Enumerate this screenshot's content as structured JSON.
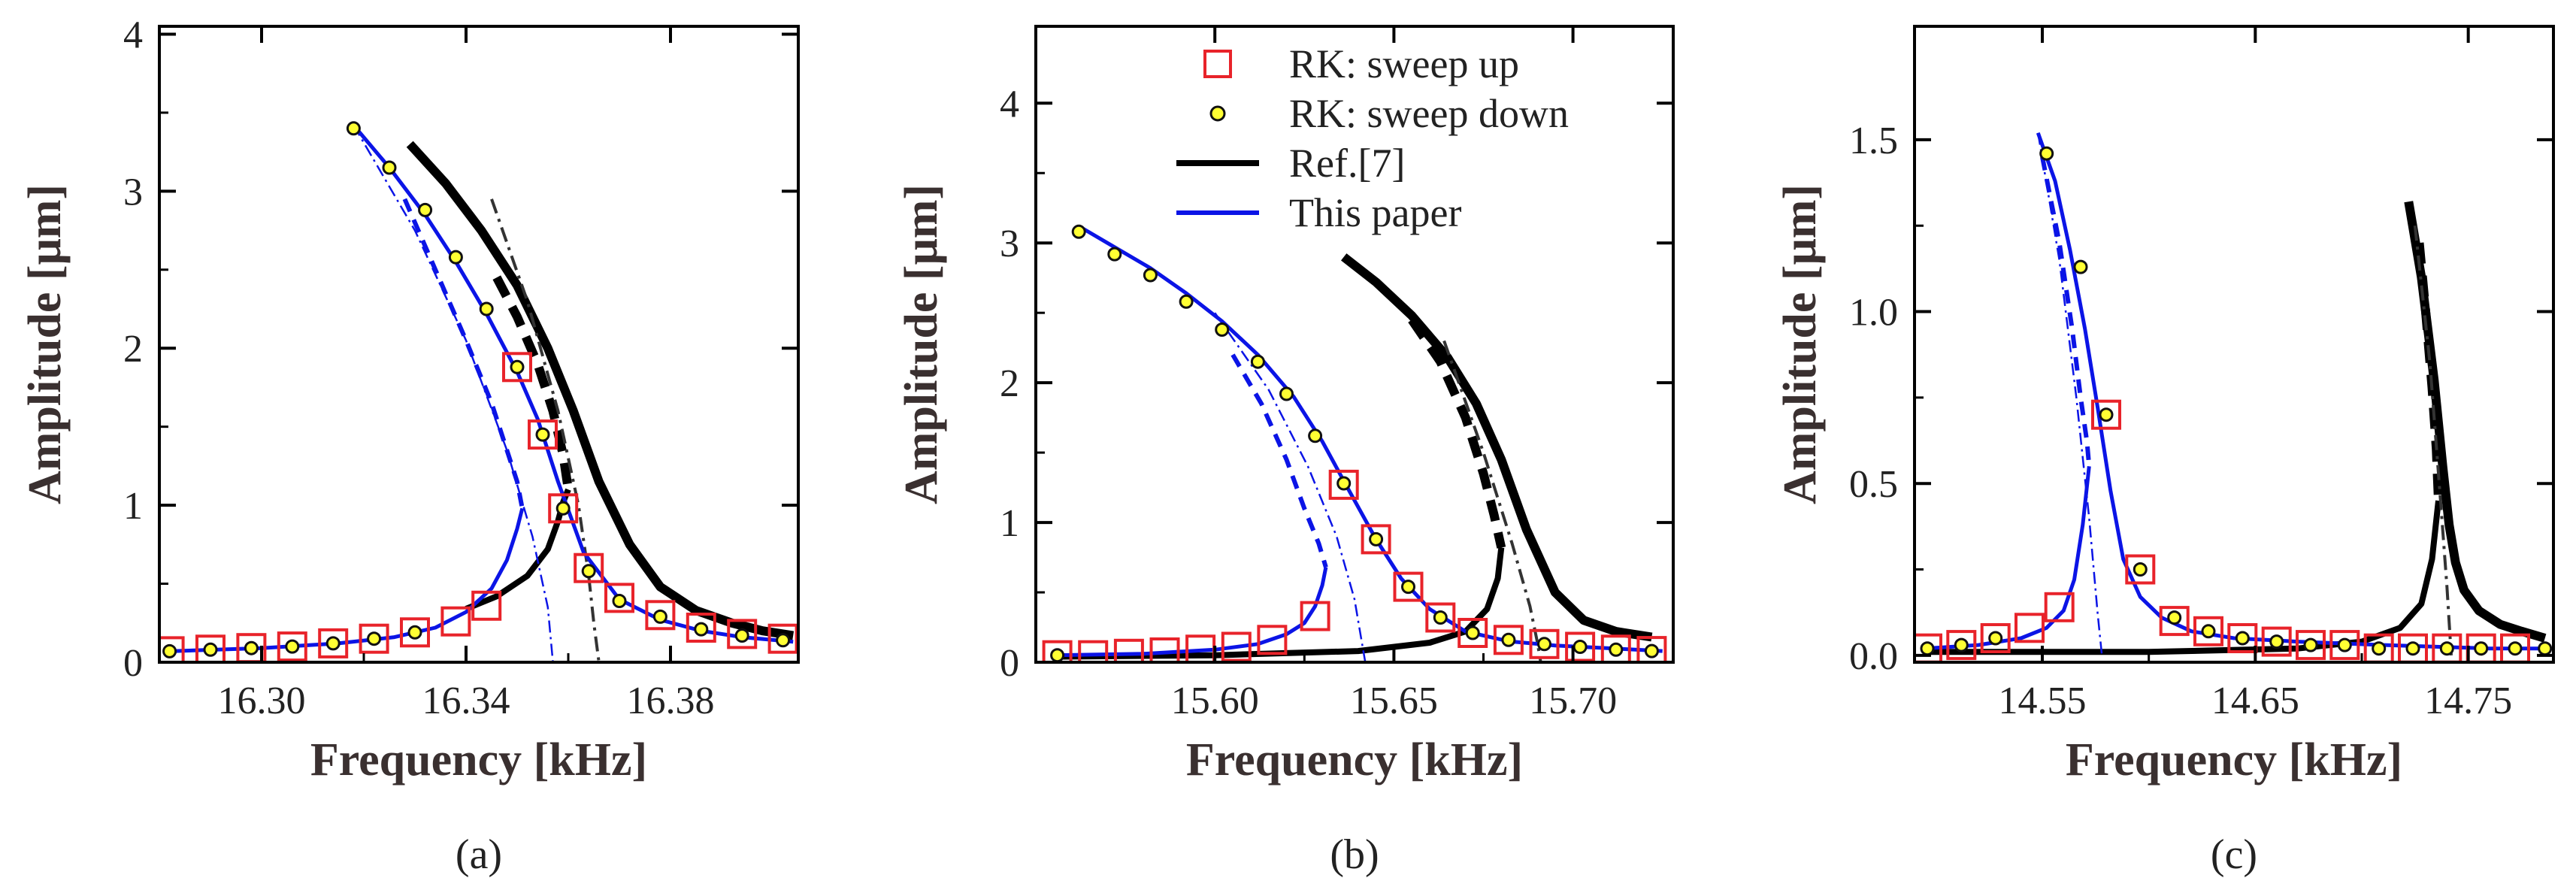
{
  "colors": {
    "rk_square": "#e8232a",
    "rk_circle_fill": "#ffff33",
    "reference": "#000000",
    "this_paper": "#0b14e6",
    "axis": "#000000"
  },
  "legend": {
    "entries": [
      {
        "label": "RK: sweep up",
        "marker": "square"
      },
      {
        "label": "RK: sweep down",
        "marker": "circle"
      },
      {
        "label": "Ref.[7]",
        "marker": "line-black"
      },
      {
        "label": "This paper",
        "marker": "line-blue"
      }
    ]
  },
  "chart_data": [
    {
      "type": "line",
      "panel_label": "(a)",
      "xlabel": "Frequency [kHz]",
      "ylabel": "Amplitude [μm]",
      "xlim": [
        16.28,
        16.405
      ],
      "ylim": [
        0,
        4.05
      ],
      "xticks": [
        16.3,
        16.34,
        16.38
      ],
      "xtick_labels": [
        "16.30",
        "16.34",
        "16.38"
      ],
      "yticks": [
        0,
        1,
        2,
        3,
        4
      ],
      "ytick_labels": [
        "0",
        "1",
        "2",
        "3",
        "4"
      ],
      "series": [
        {
          "name": "Ref.[7] stable branch",
          "color": "black",
          "width": 12,
          "dash": "",
          "x": [
            16.329,
            16.336,
            16.343,
            16.35,
            16.356,
            16.361,
            16.366,
            16.372,
            16.378,
            16.385,
            16.392,
            16.398,
            16.404
          ],
          "y": [
            3.3,
            3.05,
            2.75,
            2.4,
            2.0,
            1.6,
            1.15,
            0.75,
            0.48,
            0.33,
            0.25,
            0.2,
            0.17
          ]
        },
        {
          "name": "Ref.[7] lower branch",
          "color": "black",
          "width": 8,
          "dash": "",
          "x": [
            16.34,
            16.346,
            16.352,
            16.356,
            16.358,
            16.359,
            16.36
          ],
          "y": [
            0.34,
            0.42,
            0.55,
            0.72,
            0.9,
            1.02,
            1.1
          ]
        },
        {
          "name": "Ref.[7] unstable",
          "color": "black",
          "width": 12,
          "dash": "28,16",
          "x": [
            16.346,
            16.35,
            16.354,
            16.357,
            16.359,
            16.36
          ],
          "y": [
            2.45,
            2.2,
            1.9,
            1.6,
            1.32,
            1.1
          ]
        },
        {
          "name": "Ref.[7] backbone",
          "color": "#333333",
          "width": 4,
          "dash": "20,8,4,8",
          "x": [
            16.345,
            16.352,
            16.358,
            16.362,
            16.364,
            16.365,
            16.366
          ],
          "y": [
            2.95,
            2.3,
            1.6,
            1.0,
            0.55,
            0.25,
            0.0
          ]
        },
        {
          "name": "This paper stable",
          "color": "blue",
          "width": 5,
          "dash": "",
          "x": [
            16.318,
            16.325,
            16.332,
            16.338,
            16.344,
            16.35,
            16.354,
            16.358,
            16.363,
            16.37,
            16.378,
            16.386,
            16.394,
            16.404
          ],
          "y": [
            3.42,
            3.15,
            2.85,
            2.55,
            2.22,
            1.85,
            1.55,
            1.15,
            0.7,
            0.4,
            0.27,
            0.2,
            0.16,
            0.13
          ]
        },
        {
          "name": "This paper lower",
          "color": "blue",
          "width": 5,
          "dash": "",
          "x": [
            16.282,
            16.3,
            16.315,
            16.326,
            16.334,
            16.34,
            16.345,
            16.348,
            16.35,
            16.351
          ],
          "y": [
            0.07,
            0.09,
            0.12,
            0.16,
            0.22,
            0.32,
            0.47,
            0.65,
            0.85,
            0.98
          ]
        },
        {
          "name": "This paper unstable",
          "color": "blue",
          "width": 6,
          "dash": "18,12",
          "x": [
            16.328,
            16.334,
            16.34,
            16.345,
            16.348,
            16.35,
            16.351
          ],
          "y": [
            2.95,
            2.5,
            2.05,
            1.65,
            1.35,
            1.15,
            0.98
          ]
        },
        {
          "name": "This paper backbone",
          "color": "blue",
          "width": 2.5,
          "dash": "16,6,3,6",
          "x": [
            16.318,
            16.33,
            16.34,
            16.348,
            16.353,
            16.356,
            16.357
          ],
          "y": [
            3.42,
            2.75,
            2.05,
            1.35,
            0.8,
            0.35,
            0.0
          ]
        }
      ],
      "rk_up": {
        "x": [
          16.282,
          16.29,
          16.298,
          16.306,
          16.314,
          16.322,
          16.33,
          16.338,
          16.344,
          16.35,
          16.355,
          16.359,
          16.364,
          16.37,
          16.378,
          16.386,
          16.394,
          16.402
        ],
        "y": [
          0.07,
          0.08,
          0.09,
          0.1,
          0.12,
          0.15,
          0.19,
          0.26,
          0.36,
          1.88,
          1.45,
          0.98,
          0.6,
          0.41,
          0.3,
          0.22,
          0.18,
          0.15
        ]
      },
      "rk_down": {
        "x": [
          16.318,
          16.325,
          16.332,
          16.338,
          16.344,
          16.35,
          16.355,
          16.359,
          16.364,
          16.37,
          16.378,
          16.386,
          16.394,
          16.402,
          16.33,
          16.322,
          16.314,
          16.306,
          16.298,
          16.29,
          16.282
        ],
        "y": [
          3.4,
          3.15,
          2.88,
          2.58,
          2.25,
          1.88,
          1.45,
          0.98,
          0.58,
          0.39,
          0.29,
          0.21,
          0.17,
          0.14,
          0.19,
          0.15,
          0.12,
          0.1,
          0.09,
          0.08,
          0.07
        ]
      }
    },
    {
      "type": "line",
      "panel_label": "(b)",
      "xlabel": "Frequency [kHz]",
      "ylabel": "Amplitude [μm]",
      "xlim": [
        15.55,
        15.728
      ],
      "ylim": [
        0,
        4.55
      ],
      "xticks": [
        15.6,
        15.65,
        15.7
      ],
      "xtick_labels": [
        "15.60",
        "15.65",
        "15.70"
      ],
      "yticks": [
        0,
        1,
        2,
        3,
        4
      ],
      "ytick_labels": [
        "0",
        "1",
        "2",
        "3",
        "4"
      ],
      "series": [
        {
          "name": "Ref.[7] stable branch",
          "color": "black",
          "width": 12,
          "dash": "",
          "x": [
            15.636,
            15.645,
            15.655,
            15.665,
            15.673,
            15.68,
            15.687,
            15.695,
            15.703,
            15.712,
            15.722
          ],
          "y": [
            2.9,
            2.72,
            2.48,
            2.18,
            1.85,
            1.45,
            0.95,
            0.5,
            0.3,
            0.22,
            0.18
          ]
        },
        {
          "name": "Ref.[7] lower branch",
          "color": "black",
          "width": 8,
          "dash": "",
          "x": [
            15.555,
            15.6,
            15.64,
            15.66,
            15.67,
            15.676,
            15.679,
            15.68
          ],
          "y": [
            0.04,
            0.05,
            0.08,
            0.14,
            0.22,
            0.38,
            0.6,
            0.82
          ]
        },
        {
          "name": "Ref.[7] unstable",
          "color": "black",
          "width": 12,
          "dash": "28,16",
          "x": [
            15.655,
            15.663,
            15.67,
            15.675,
            15.678,
            15.68
          ],
          "y": [
            2.45,
            2.15,
            1.75,
            1.35,
            1.05,
            0.82
          ]
        },
        {
          "name": "Ref.[7] backbone",
          "color": "#333333",
          "width": 4,
          "dash": "20,8,4,8",
          "x": [
            15.664,
            15.675,
            15.683,
            15.688,
            15.69,
            15.691
          ],
          "y": [
            2.3,
            1.5,
            0.85,
            0.4,
            0.15,
            0.0
          ]
        },
        {
          "name": "This paper stable",
          "color": "blue",
          "width": 5,
          "dash": "",
          "x": [
            15.562,
            15.572,
            15.582,
            15.592,
            15.602,
            15.612,
            15.622,
            15.63,
            15.637,
            15.645,
            15.652,
            15.66,
            15.67,
            15.682,
            15.695,
            15.71,
            15.725
          ],
          "y": [
            3.12,
            2.97,
            2.82,
            2.64,
            2.44,
            2.2,
            1.9,
            1.58,
            1.25,
            0.88,
            0.6,
            0.38,
            0.22,
            0.15,
            0.12,
            0.1,
            0.08
          ]
        },
        {
          "name": "This paper lower",
          "color": "blue",
          "width": 5,
          "dash": "",
          "x": [
            15.555,
            15.58,
            15.6,
            15.612,
            15.62,
            15.625,
            15.628,
            15.63,
            15.631
          ],
          "y": [
            0.05,
            0.06,
            0.09,
            0.13,
            0.2,
            0.28,
            0.4,
            0.55,
            0.68
          ]
        },
        {
          "name": "This paper unstable",
          "color": "blue",
          "width": 6,
          "dash": "18,12",
          "x": [
            15.605,
            15.613,
            15.62,
            15.625,
            15.629,
            15.631
          ],
          "y": [
            2.2,
            1.85,
            1.45,
            1.1,
            0.85,
            0.68
          ]
        },
        {
          "name": "This paper backbone",
          "color": "blue",
          "width": 2.5,
          "dash": "16,6,3,6",
          "x": [
            15.6,
            15.615,
            15.626,
            15.634,
            15.639,
            15.641,
            15.642
          ],
          "y": [
            2.5,
            1.95,
            1.4,
            0.9,
            0.45,
            0.15,
            0.0
          ]
        }
      ],
      "rk_up": {
        "x": [
          15.556,
          15.566,
          15.576,
          15.586,
          15.596,
          15.606,
          15.616,
          15.628,
          15.636,
          15.645,
          15.654,
          15.663,
          15.672,
          15.682,
          15.692,
          15.702,
          15.712,
          15.722
        ],
        "y": [
          0.05,
          0.05,
          0.06,
          0.07,
          0.09,
          0.11,
          0.16,
          0.33,
          1.27,
          0.88,
          0.54,
          0.32,
          0.21,
          0.16,
          0.13,
          0.11,
          0.09,
          0.08
        ]
      },
      "rk_down": {
        "x": [
          15.562,
          15.572,
          15.582,
          15.592,
          15.602,
          15.612,
          15.62,
          15.628,
          15.636,
          15.645,
          15.654,
          15.663,
          15.672,
          15.682,
          15.692,
          15.702,
          15.712,
          15.722,
          15.556
        ],
        "y": [
          3.08,
          2.92,
          2.77,
          2.58,
          2.38,
          2.15,
          1.92,
          1.62,
          1.28,
          0.88,
          0.54,
          0.32,
          0.21,
          0.16,
          0.13,
          0.11,
          0.09,
          0.08,
          0.05
        ]
      }
    },
    {
      "type": "line",
      "panel_label": "(c)",
      "xlabel": "Frequency [kHz]",
      "ylabel": "Amplitude [μm]",
      "xlim": [
        14.49,
        14.79
      ],
      "ylim": [
        -0.02,
        1.83
      ],
      "xticks": [
        14.55,
        14.65,
        14.75
      ],
      "xtick_labels": [
        "14.55",
        "14.65",
        "14.75"
      ],
      "yticks": [
        0.0,
        0.5,
        1.0,
        1.5
      ],
      "ytick_labels": [
        "0.0",
        "0.5",
        "1.0",
        "1.5"
      ],
      "series": [
        {
          "name": "Ref.[7] stable branch",
          "color": "black",
          "width": 12,
          "dash": "",
          "x": [
            14.722,
            14.728,
            14.734,
            14.738,
            14.741,
            14.744,
            14.748,
            14.755,
            14.765,
            14.775,
            14.786
          ],
          "y": [
            1.32,
            1.1,
            0.8,
            0.55,
            0.38,
            0.27,
            0.19,
            0.13,
            0.09,
            0.07,
            0.05
          ]
        },
        {
          "name": "Ref.[7] lower branch",
          "color": "black",
          "width": 8,
          "dash": "",
          "x": [
            14.495,
            14.6,
            14.67,
            14.7,
            14.718,
            14.728,
            14.733,
            14.736
          ],
          "y": [
            0.01,
            0.01,
            0.02,
            0.04,
            0.08,
            0.15,
            0.28,
            0.45
          ]
        },
        {
          "name": "Ref.[7] unstable",
          "color": "black",
          "width": 12,
          "dash": "28,16",
          "x": [
            14.727,
            14.73,
            14.733,
            14.735,
            14.736
          ],
          "y": [
            1.2,
            1.0,
            0.78,
            0.6,
            0.45
          ]
        },
        {
          "name": "Ref.[7] backbone",
          "color": "#333333",
          "width": 4,
          "dash": "20,8,4,8",
          "x": [
            14.725,
            14.732,
            14.737,
            14.74,
            14.742
          ],
          "y": [
            1.25,
            0.85,
            0.45,
            0.2,
            0.0
          ]
        },
        {
          "name": "This paper stable",
          "color": "blue",
          "width": 5,
          "dash": "",
          "x": [
            14.548,
            14.556,
            14.563,
            14.57,
            14.576,
            14.582,
            14.588,
            14.596,
            14.606,
            14.62,
            14.64,
            14.67,
            14.71,
            14.76,
            14.786
          ],
          "y": [
            1.52,
            1.38,
            1.18,
            0.95,
            0.72,
            0.48,
            0.28,
            0.17,
            0.11,
            0.07,
            0.05,
            0.04,
            0.03,
            0.02,
            0.02
          ]
        },
        {
          "name": "This paper lower",
          "color": "blue",
          "width": 5,
          "dash": "",
          "x": [
            14.495,
            14.52,
            14.54,
            14.552,
            14.56,
            14.565,
            14.569,
            14.572
          ],
          "y": [
            0.02,
            0.03,
            0.05,
            0.08,
            0.13,
            0.22,
            0.38,
            0.55
          ]
        },
        {
          "name": "This paper unstable",
          "color": "blue",
          "width": 6,
          "dash": "18,12",
          "x": [
            14.55,
            14.558,
            14.564,
            14.568,
            14.571,
            14.572
          ],
          "y": [
            1.45,
            1.2,
            0.95,
            0.75,
            0.62,
            0.55
          ]
        },
        {
          "name": "This paper backbone",
          "color": "blue",
          "width": 2.5,
          "dash": "16,6,3,6",
          "x": [
            14.548,
            14.558,
            14.566,
            14.572,
            14.576,
            14.578
          ],
          "y": [
            1.52,
            1.15,
            0.75,
            0.4,
            0.12,
            0.0
          ]
        }
      ],
      "rk_up": {
        "x": [
          14.496,
          14.512,
          14.528,
          14.544,
          14.558,
          14.58,
          14.596,
          14.612,
          14.628,
          14.644,
          14.66,
          14.676,
          14.692,
          14.708,
          14.724,
          14.74,
          14.756,
          14.772
        ],
        "y": [
          0.02,
          0.03,
          0.05,
          0.08,
          0.14,
          0.7,
          0.25,
          0.1,
          0.07,
          0.05,
          0.04,
          0.03,
          0.03,
          0.02,
          0.02,
          0.02,
          0.02,
          0.02
        ]
      },
      "rk_down": {
        "x": [
          14.552,
          14.568,
          14.58,
          14.596,
          14.612,
          14.628,
          14.644,
          14.66,
          14.676,
          14.692,
          14.708,
          14.724,
          14.74,
          14.756,
          14.772,
          14.786,
          14.496,
          14.512,
          14.528
        ],
        "y": [
          1.46,
          1.13,
          0.7,
          0.25,
          0.11,
          0.07,
          0.05,
          0.04,
          0.03,
          0.03,
          0.02,
          0.02,
          0.02,
          0.02,
          0.02,
          0.02,
          0.02,
          0.03,
          0.05
        ]
      }
    }
  ]
}
